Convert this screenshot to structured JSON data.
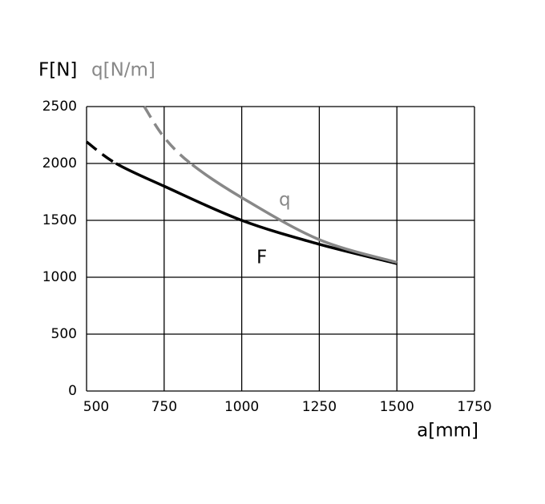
{
  "chart_data": {
    "type": "line",
    "y_label": "F[N]",
    "y_label_2": "q[N/m]",
    "x_label": "a[mm]",
    "xlim": [
      500,
      1750
    ],
    "xticks": [
      500,
      750,
      1000,
      1250,
      1500,
      1750
    ],
    "ylim": [
      0,
      2500
    ],
    "yticks": [
      0,
      500,
      1000,
      1500,
      2000,
      2500
    ],
    "grid": true,
    "series": [
      {
        "name": "F",
        "color": "#000000",
        "dashed_segments": 1,
        "x": [
          500,
          595,
          750,
          1000,
          1250,
          1500
        ],
        "values": [
          2190,
          2000,
          1800,
          1500,
          1290,
          1120
        ]
      },
      {
        "name": "q",
        "color": "#888888",
        "dashed_segments": 2,
        "x": [
          686,
          750,
          840,
          1000,
          1250,
          1500
        ],
        "values": [
          2500,
          2230,
          1990,
          1700,
          1330,
          1130
        ]
      }
    ]
  }
}
